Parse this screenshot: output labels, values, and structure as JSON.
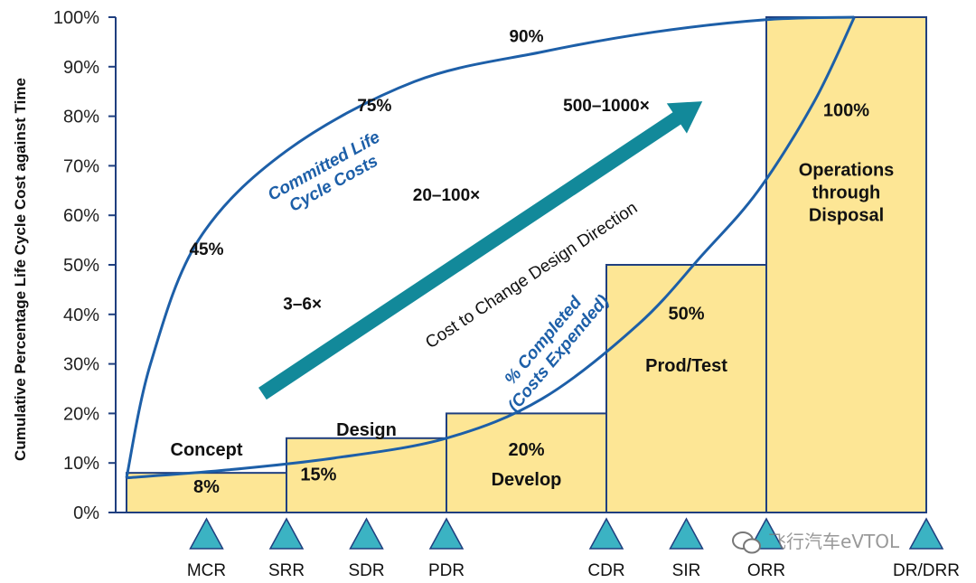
{
  "chart_data": {
    "type": "bar",
    "ylabel": "Cumulative Percentage Life Cycle Cost against Time",
    "ylim": [
      0,
      100
    ],
    "yticks": [
      "0%",
      "10%",
      "20%",
      "30%",
      "40%",
      "50%",
      "60%",
      "70%",
      "80%",
      "90%",
      "100%"
    ],
    "phases": [
      {
        "name": "Concept",
        "value_label": "8%",
        "value": 8,
        "start": 0.0,
        "end": 1.0
      },
      {
        "name": "Design",
        "value_label": "15%",
        "value": 15,
        "start": 1.0,
        "end": 2.0
      },
      {
        "name": "Develop",
        "value_label": "20%",
        "value": 20,
        "start": 2.0,
        "end": 3.0
      },
      {
        "name": "Prod/Test",
        "value_label": "50%",
        "value": 50,
        "start": 3.0,
        "end": 4.0
      },
      {
        "name": "Operations through Disposal",
        "name_lines": [
          "Operations",
          "through",
          "Disposal"
        ],
        "value_label": "100%",
        "value": 100,
        "start": 4.0,
        "end": 5.0
      }
    ],
    "milestones": [
      {
        "label": "MCR",
        "x": 0.5
      },
      {
        "label": "SRR",
        "x": 1.0
      },
      {
        "label": "SDR",
        "x": 1.5
      },
      {
        "label": "PDR",
        "x": 2.0
      },
      {
        "label": "CDR",
        "x": 3.0
      },
      {
        "label": "SIR",
        "x": 3.5
      },
      {
        "label": "ORR",
        "x": 4.0
      },
      {
        "label": "DR/DRR",
        "x": 5.0
      }
    ],
    "committed_curve": {
      "label_lines": [
        "Committed Life",
        "Cycle Costs"
      ],
      "points": [
        [
          0.0,
          7
        ],
        [
          0.15,
          30
        ],
        [
          0.45,
          55
        ],
        [
          1.0,
          73
        ],
        [
          1.8,
          87
        ],
        [
          2.6,
          93
        ],
        [
          3.3,
          97
        ],
        [
          4.0,
          99.5
        ],
        [
          4.55,
          100
        ]
      ],
      "annotations": [
        {
          "text": "45%",
          "x": 0.5,
          "y": 52
        },
        {
          "text": "75%",
          "x": 1.55,
          "y": 81
        },
        {
          "text": "90%",
          "x": 2.5,
          "y": 95
        }
      ]
    },
    "completed_curve": {
      "label_lines": [
        "% Completed",
        "(Costs Expended)"
      ],
      "points": [
        [
          0.0,
          7
        ],
        [
          0.6,
          8.5
        ],
        [
          1.3,
          11
        ],
        [
          2.0,
          15
        ],
        [
          2.6,
          23
        ],
        [
          3.2,
          38
        ],
        [
          3.6,
          52
        ],
        [
          3.95,
          65
        ],
        [
          4.3,
          83
        ],
        [
          4.55,
          100
        ]
      ]
    },
    "cost_arrow": {
      "label": "Cost to Change Design Direction",
      "from": [
        0.85,
        24
      ],
      "to": [
        3.6,
        83
      ],
      "multipliers": [
        {
          "text": "3–6×",
          "x": 1.1,
          "y": 41
        },
        {
          "text": "20–100×",
          "x": 2.0,
          "y": 63
        },
        {
          "text": "500–1000×",
          "x": 3.0,
          "y": 81
        }
      ]
    }
  },
  "watermark": {
    "text": "飞行汽车eVTOL",
    "icon": "wechat-icon"
  },
  "colors": {
    "bar_fill": "#fde695",
    "bar_stroke": "#1f3f7f",
    "curve": "#1d5fa8",
    "arrow": "#12899a",
    "milestone": "#3bb3c3",
    "axis": "#1f3f7f"
  }
}
